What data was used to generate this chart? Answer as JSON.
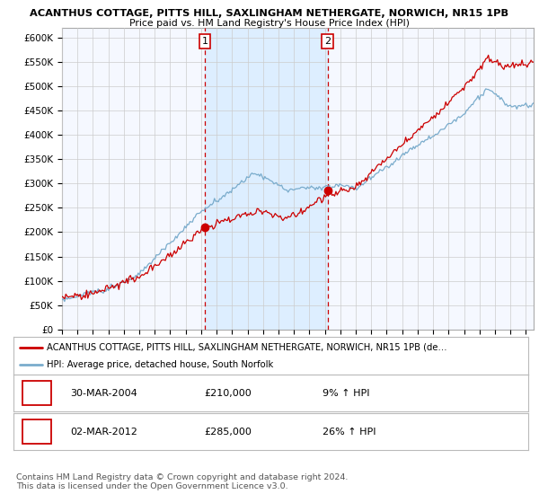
{
  "title1": "ACANTHUS COTTAGE, PITTS HILL, SAXLINGHAM NETHERGATE, NORWICH, NR15 1PB",
  "title2": "Price paid vs. HM Land Registry's House Price Index (HPI)",
  "ylim": [
    0,
    620000
  ],
  "yticks": [
    0,
    50000,
    100000,
    150000,
    200000,
    250000,
    300000,
    350000,
    400000,
    450000,
    500000,
    550000,
    600000
  ],
  "ytick_labels": [
    "£0",
    "£50K",
    "£100K",
    "£150K",
    "£200K",
    "£250K",
    "£300K",
    "£350K",
    "£400K",
    "£450K",
    "£500K",
    "£550K",
    "£600K"
  ],
  "xlim_start": 1995.0,
  "xlim_end": 2025.5,
  "sale1_x": 2004.25,
  "sale1_y": 210000,
  "sale1_label": "1",
  "sale1_date": "30-MAR-2004",
  "sale1_price": "£210,000",
  "sale1_hpi": "9% ↑ HPI",
  "sale2_x": 2012.17,
  "sale2_y": 285000,
  "sale2_label": "2",
  "sale2_date": "02-MAR-2012",
  "sale2_price": "£285,000",
  "sale2_hpi": "26% ↑ HPI",
  "red_line_color": "#cc0000",
  "blue_line_color": "#7aaccc",
  "shade_color": "#ddeeff",
  "grid_color": "#cccccc",
  "legend_line1": "ACANTHUS COTTAGE, PITTS HILL, SAXLINGHAM NETHERGATE, NORWICH, NR15 1PB (de…",
  "legend_line2": "HPI: Average price, detached house, South Norfolk",
  "footnote": "Contains HM Land Registry data © Crown copyright and database right 2024.\nThis data is licensed under the Open Government Licence v3.0.",
  "background_color": "#ffffff",
  "plot_bg_color": "#f5f8ff"
}
